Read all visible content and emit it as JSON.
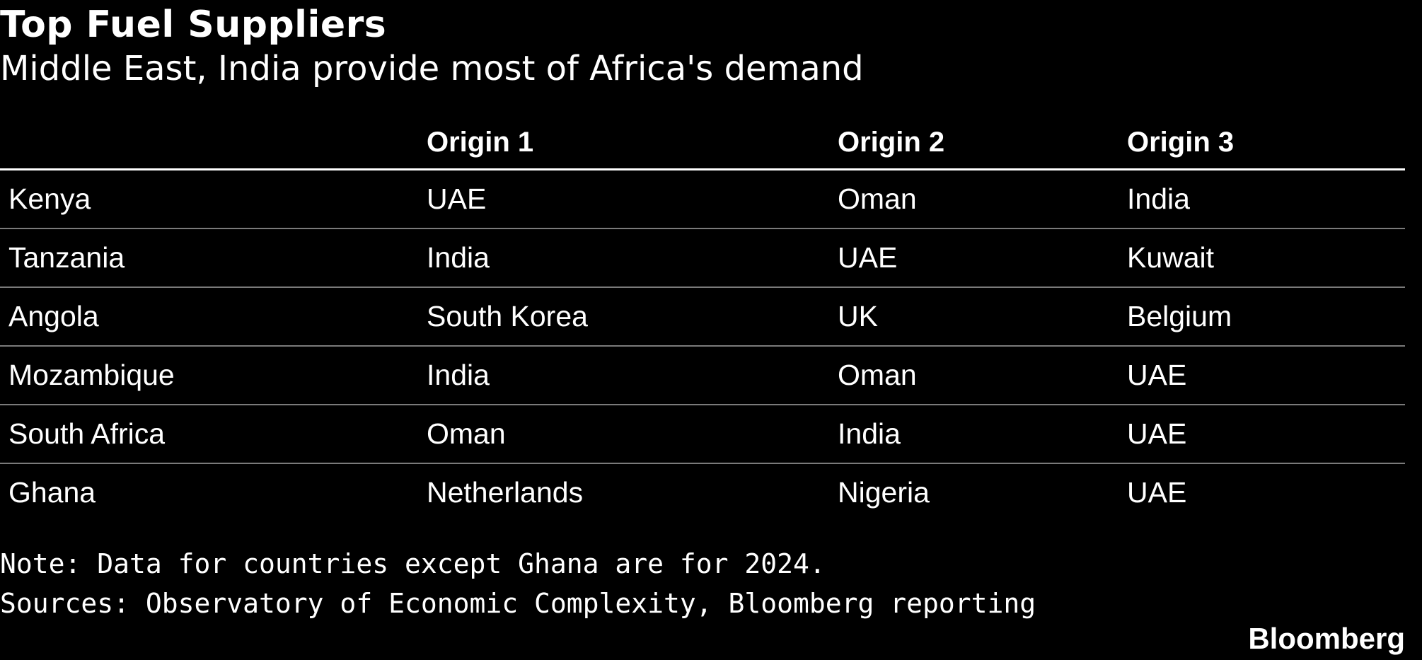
{
  "title": "Top Fuel Suppliers",
  "subtitle": "Middle East, India provide most of Africa's demand",
  "chart_data": {
    "type": "table",
    "title": "Top Fuel Suppliers",
    "subtitle": "Middle East, India provide most of Africa's demand",
    "columns": [
      "",
      "Origin 1",
      "Origin 2",
      "Origin 3"
    ],
    "rows": [
      [
        "Kenya",
        "UAE",
        "Oman",
        "India"
      ],
      [
        "Tanzania",
        "India",
        "UAE",
        "Kuwait"
      ],
      [
        "Angola",
        "South Korea",
        "UK",
        "Belgium"
      ],
      [
        "Mozambique",
        "India",
        "Oman",
        "UAE"
      ],
      [
        "South Africa",
        "Oman",
        "India",
        "UAE"
      ],
      [
        "Ghana",
        "Netherlands",
        "Nigeria",
        "UAE"
      ]
    ]
  },
  "note": "Note: Data for countries except Ghana are for 2024.",
  "sources": "Sources: Observatory of Economic Complexity, Bloomberg reporting",
  "brand": "Bloomberg",
  "colors": {
    "background": "#000000",
    "text": "#ffffff",
    "header_rule": "#ffffff",
    "row_rule": "#7a7a7a"
  }
}
